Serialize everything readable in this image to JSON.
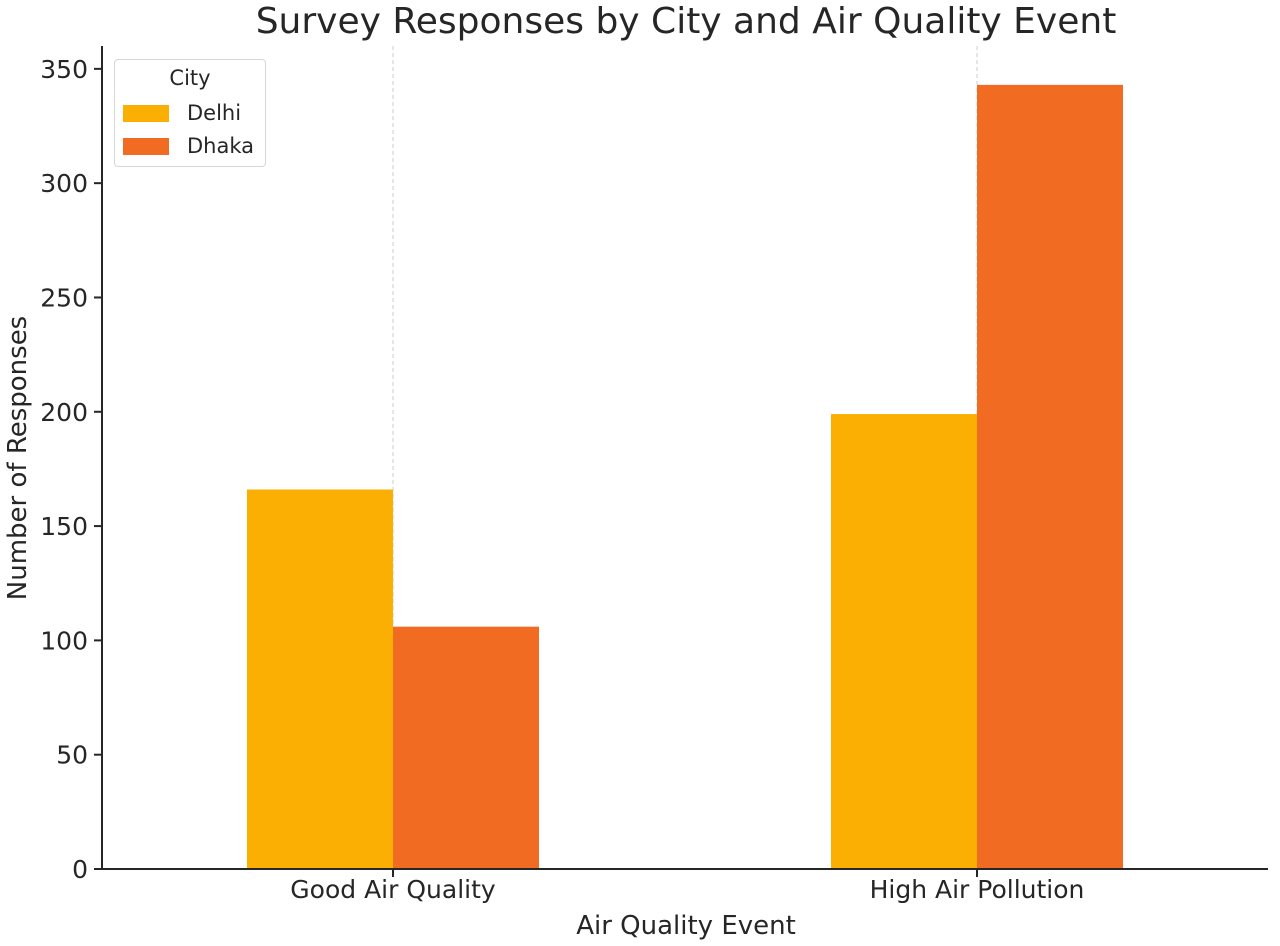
{
  "chart_data": {
    "type": "bar",
    "title": "Survey Responses by City and Air Quality Event",
    "xlabel": "Air Quality Event",
    "ylabel": "Number of Responses",
    "categories": [
      "Good Air Quality",
      "High Air Pollution"
    ],
    "series": [
      {
        "name": "Delhi",
        "values": [
          166,
          199
        ],
        "color": "#FCAF03"
      },
      {
        "name": "Dhaka",
        "values": [
          106,
          343
        ],
        "color": "#F26B23"
      }
    ],
    "ylim": [
      0,
      360
    ],
    "yticks": [
      0,
      50,
      100,
      150,
      200,
      250,
      300,
      350
    ],
    "grid": "vertical dashed at category centers",
    "legend": {
      "title": "City",
      "placement": "top-left"
    }
  }
}
